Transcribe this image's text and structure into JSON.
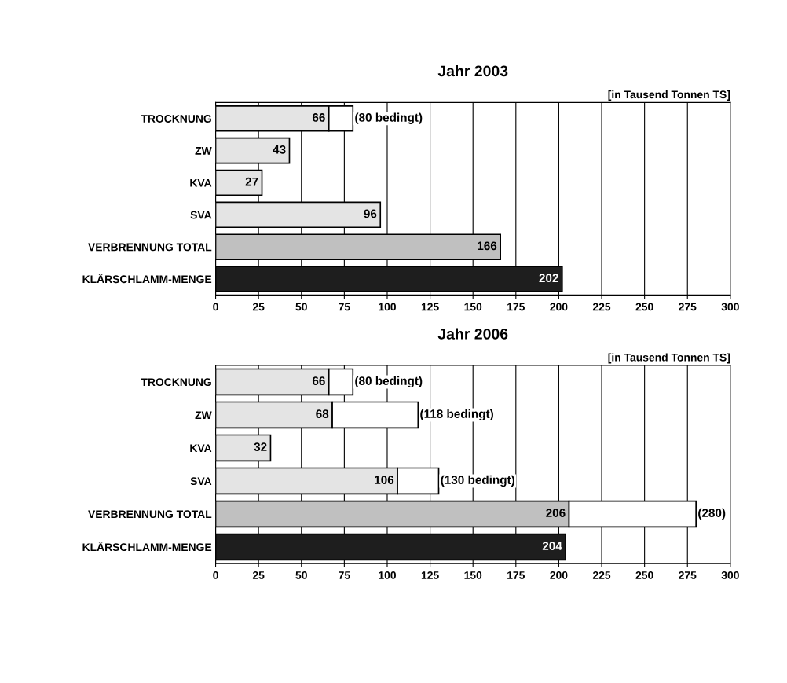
{
  "chart_data": [
    {
      "type": "bar",
      "title": "Jahr 2003",
      "orientation": "horizontal",
      "stacked": true,
      "categories": [
        "TROCKNUNG",
        "ZW",
        "KVA",
        "SVA",
        "VERBRENNUNG TOTAL",
        "KLÄRSCHLAMM-MENGE"
      ],
      "annotations": [
        "[in Tausend Tonnen TS]"
      ],
      "xlim": [
        0,
        300
      ],
      "xticks": [
        0,
        25,
        50,
        75,
        100,
        125,
        150,
        175,
        200,
        225,
        250,
        275,
        300
      ],
      "grid": "x",
      "series": [
        {
          "colors": [
            "#e4e4e4",
            "#e4e4e4",
            "#e4e4e4",
            "#e4e4e4",
            "#c0c0c0",
            "#1e1e1e"
          ],
          "values": [
            66,
            43,
            27,
            96,
            166,
            202
          ],
          "value_labels": [
            "66",
            "43",
            "27",
            "96",
            "166",
            "202"
          ]
        },
        {
          "color": "#ffffff",
          "values": [
            14,
            null,
            null,
            null,
            null,
            null
          ]
        }
      ],
      "totals": [
        "(80 bedingt)",
        null,
        null,
        null,
        null,
        null
      ]
    },
    {
      "type": "bar",
      "title": "Jahr 2006",
      "orientation": "horizontal",
      "stacked": true,
      "categories": [
        "TROCKNUNG",
        "ZW",
        "KVA",
        "SVA",
        "VERBRENNUNG TOTAL",
        "KLÄRSCHLAMM-MENGE"
      ],
      "annotations": [
        "[in Tausend Tonnen TS]"
      ],
      "xlim": [
        0,
        300
      ],
      "xticks": [
        0,
        25,
        50,
        75,
        100,
        125,
        150,
        175,
        200,
        225,
        250,
        275,
        300
      ],
      "grid": "x",
      "series": [
        {
          "colors": [
            "#e4e4e4",
            "#e4e4e4",
            "#e4e4e4",
            "#e4e4e4",
            "#c0c0c0",
            "#1e1e1e"
          ],
          "values": [
            66,
            68,
            32,
            106,
            206,
            204
          ],
          "value_labels": [
            "66",
            "68",
            "32",
            "106",
            "206",
            "204"
          ]
        },
        {
          "color": "#ffffff",
          "values": [
            14,
            50,
            null,
            24,
            74,
            null
          ]
        }
      ],
      "totals": [
        "(80 bedingt)",
        "(118 bedingt)",
        null,
        "(130 bedingt)",
        "(280)",
        null
      ]
    }
  ]
}
